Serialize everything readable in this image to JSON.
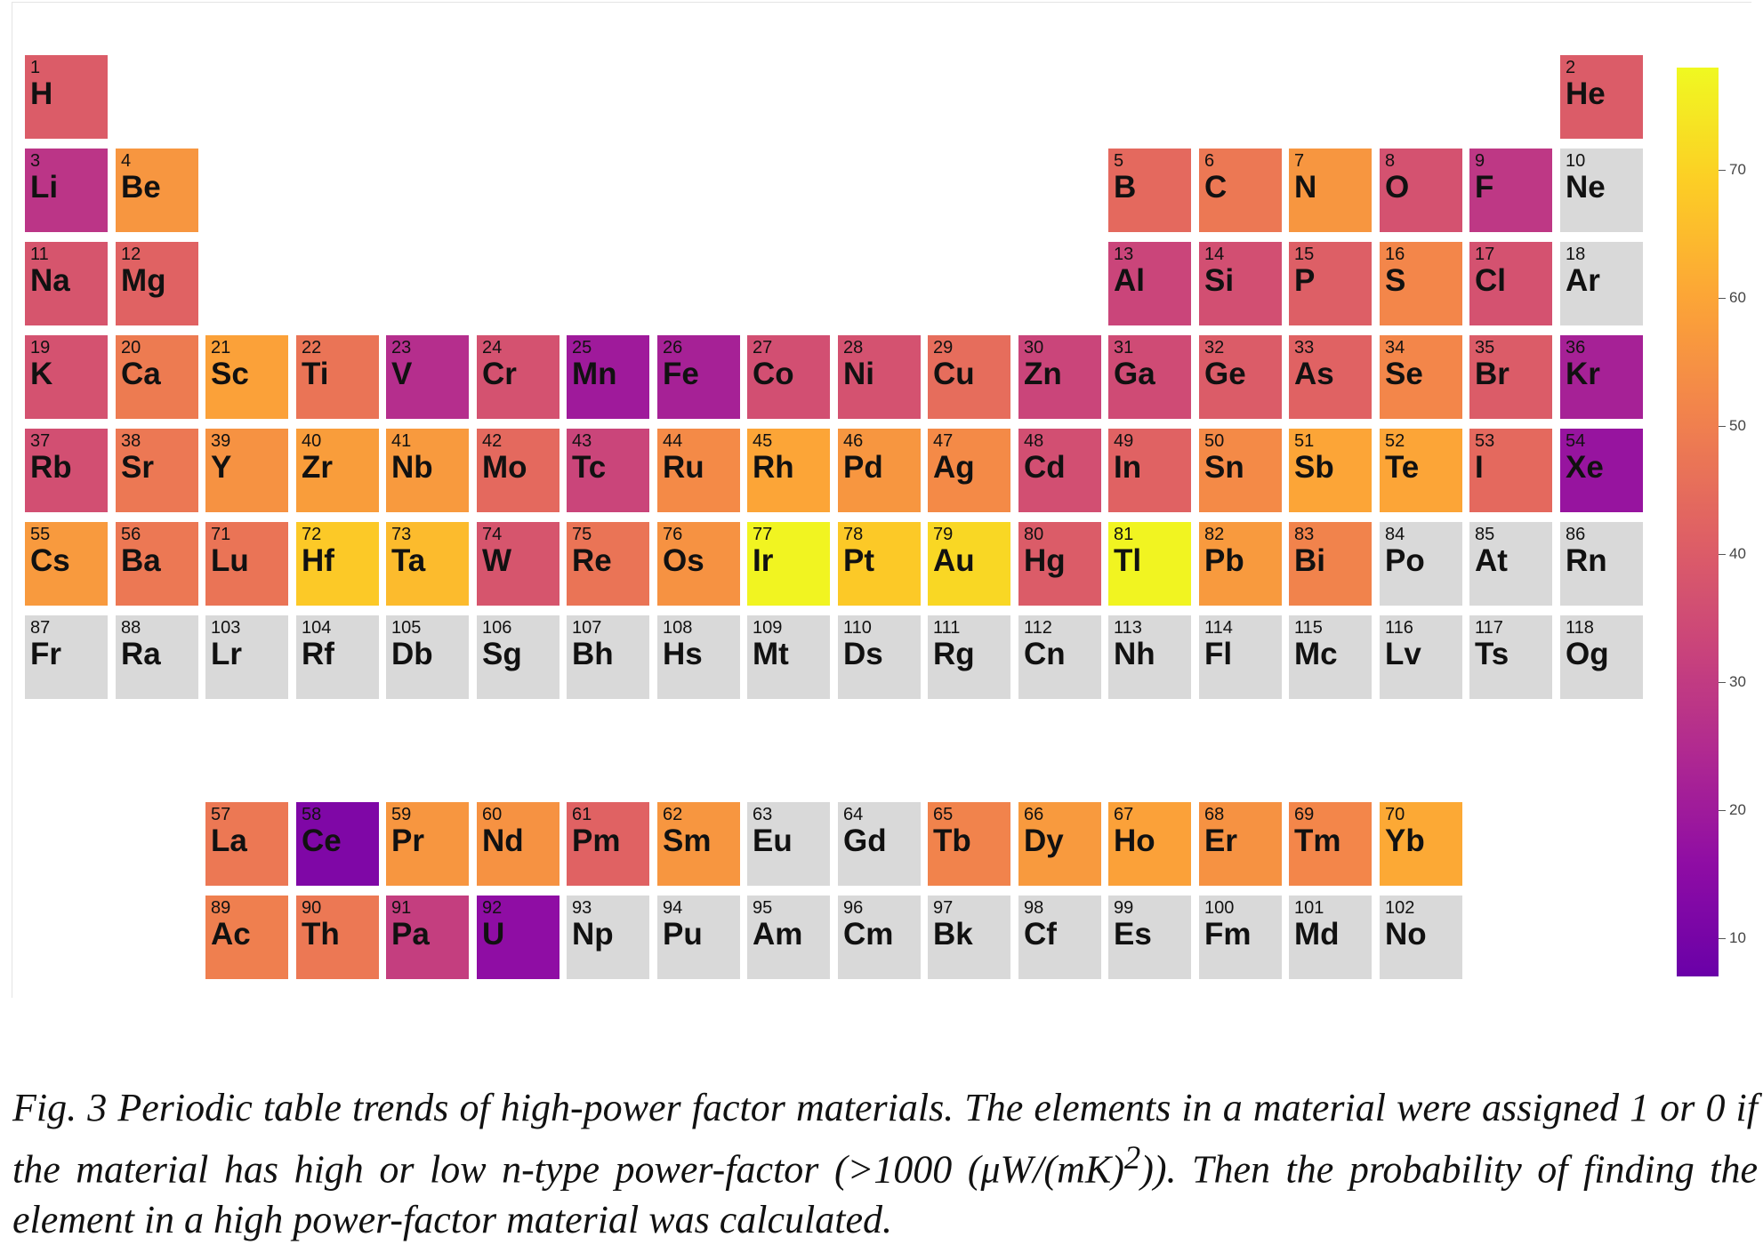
{
  "chart_data": {
    "type": "heatmap",
    "title": "",
    "colorbar": {
      "range": [
        7,
        78
      ],
      "ticks": [
        10,
        20,
        30,
        40,
        50,
        60,
        70
      ],
      "colormap": "plasma",
      "colors": [
        "#0d0887",
        "#41049d",
        "#6a00a8",
        "#8f0da4",
        "#b12a90",
        "#cc4778",
        "#e16462",
        "#f2844b",
        "#fca636",
        "#fcce25",
        "#f0f921"
      ]
    },
    "no_data_color": "#d9d9d9",
    "elements": [
      {
        "num": "1",
        "sym": "H",
        "value": 40
      },
      {
        "num": "2",
        "sym": "He",
        "value": 40
      },
      {
        "num": "3",
        "sym": "Li",
        "value": 28
      },
      {
        "num": "4",
        "sym": "Be",
        "value": 56
      },
      {
        "num": "5",
        "sym": "B",
        "value": 44
      },
      {
        "num": "6",
        "sym": "C",
        "value": 48
      },
      {
        "num": "7",
        "sym": "N",
        "value": 56
      },
      {
        "num": "8",
        "sym": "O",
        "value": 37
      },
      {
        "num": "9",
        "sym": "F",
        "value": 29
      },
      {
        "num": "10",
        "sym": "Ne",
        "value": null
      },
      {
        "num": "11",
        "sym": "Na",
        "value": 38
      },
      {
        "num": "12",
        "sym": "Mg",
        "value": 42
      },
      {
        "num": "13",
        "sym": "Al",
        "value": 33
      },
      {
        "num": "14",
        "sym": "Si",
        "value": 36
      },
      {
        "num": "15",
        "sym": "P",
        "value": 41
      },
      {
        "num": "16",
        "sym": "S",
        "value": 52
      },
      {
        "num": "17",
        "sym": "Cl",
        "value": 37
      },
      {
        "num": "18",
        "sym": "Ar",
        "value": null
      },
      {
        "num": "19",
        "sym": "K",
        "value": 37
      },
      {
        "num": "20",
        "sym": "Ca",
        "value": 49
      },
      {
        "num": "21",
        "sym": "Sc",
        "value": 59
      },
      {
        "num": "22",
        "sym": "Ti",
        "value": 47
      },
      {
        "num": "23",
        "sym": "V",
        "value": 26
      },
      {
        "num": "24",
        "sym": "Cr",
        "value": 37
      },
      {
        "num": "25",
        "sym": "Mn",
        "value": 20
      },
      {
        "num": "26",
        "sym": "Fe",
        "value": 22
      },
      {
        "num": "27",
        "sym": "Co",
        "value": 36
      },
      {
        "num": "28",
        "sym": "Ni",
        "value": 37
      },
      {
        "num": "29",
        "sym": "Cu",
        "value": 45
      },
      {
        "num": "30",
        "sym": "Zn",
        "value": 33
      },
      {
        "num": "31",
        "sym": "Ga",
        "value": 35
      },
      {
        "num": "32",
        "sym": "Ge",
        "value": 40
      },
      {
        "num": "33",
        "sym": "As",
        "value": 42
      },
      {
        "num": "34",
        "sym": "Se",
        "value": 52
      },
      {
        "num": "35",
        "sym": "Br",
        "value": 40
      },
      {
        "num": "36",
        "sym": "Kr",
        "value": 22
      },
      {
        "num": "37",
        "sym": "Rb",
        "value": 36
      },
      {
        "num": "38",
        "sym": "Sr",
        "value": 48
      },
      {
        "num": "39",
        "sym": "Y",
        "value": 55
      },
      {
        "num": "40",
        "sym": "Zr",
        "value": 58
      },
      {
        "num": "41",
        "sym": "Nb",
        "value": 57
      },
      {
        "num": "42",
        "sym": "Mo",
        "value": 44
      },
      {
        "num": "43",
        "sym": "Tc",
        "value": 33
      },
      {
        "num": "44",
        "sym": "Ru",
        "value": 53
      },
      {
        "num": "45",
        "sym": "Rh",
        "value": 60
      },
      {
        "num": "46",
        "sym": "Pd",
        "value": 56
      },
      {
        "num": "47",
        "sym": "Ag",
        "value": 53
      },
      {
        "num": "48",
        "sym": "Cd",
        "value": 36
      },
      {
        "num": "49",
        "sym": "In",
        "value": 42
      },
      {
        "num": "50",
        "sym": "Sn",
        "value": 53
      },
      {
        "num": "51",
        "sym": "Sb",
        "value": 60
      },
      {
        "num": "52",
        "sym": "Te",
        "value": 60
      },
      {
        "num": "53",
        "sym": "I",
        "value": 44
      },
      {
        "num": "54",
        "sym": "Xe",
        "value": 18
      },
      {
        "num": "55",
        "sym": "Cs",
        "value": 57
      },
      {
        "num": "56",
        "sym": "Ba",
        "value": 48
      },
      {
        "num": "71",
        "sym": "Lu",
        "value": 47
      },
      {
        "num": "72",
        "sym": "Hf",
        "value": 68
      },
      {
        "num": "73",
        "sym": "Ta",
        "value": 65
      },
      {
        "num": "74",
        "sym": "W",
        "value": 38
      },
      {
        "num": "75",
        "sym": "Re",
        "value": 47
      },
      {
        "num": "76",
        "sym": "Os",
        "value": 55
      },
      {
        "num": "77",
        "sym": "Ir",
        "value": 77
      },
      {
        "num": "78",
        "sym": "Pt",
        "value": 68
      },
      {
        "num": "79",
        "sym": "Au",
        "value": 71
      },
      {
        "num": "80",
        "sym": "Hg",
        "value": 40
      },
      {
        "num": "81",
        "sym": "Tl",
        "value": 77
      },
      {
        "num": "82",
        "sym": "Pb",
        "value": 57
      },
      {
        "num": "83",
        "sym": "Bi",
        "value": 51
      },
      {
        "num": "84",
        "sym": "Po",
        "value": null
      },
      {
        "num": "85",
        "sym": "At",
        "value": null
      },
      {
        "num": "86",
        "sym": "Rn",
        "value": null
      },
      {
        "num": "87",
        "sym": "Fr",
        "value": null
      },
      {
        "num": "88",
        "sym": "Ra",
        "value": null
      },
      {
        "num": "103",
        "sym": "Lr",
        "value": null
      },
      {
        "num": "104",
        "sym": "Rf",
        "value": null
      },
      {
        "num": "105",
        "sym": "Db",
        "value": null
      },
      {
        "num": "106",
        "sym": "Sg",
        "value": null
      },
      {
        "num": "107",
        "sym": "Bh",
        "value": null
      },
      {
        "num": "108",
        "sym": "Hs",
        "value": null
      },
      {
        "num": "109",
        "sym": "Mt",
        "value": null
      },
      {
        "num": "110",
        "sym": "Ds",
        "value": null
      },
      {
        "num": "111",
        "sym": "Rg",
        "value": null
      },
      {
        "num": "112",
        "sym": "Cn",
        "value": null
      },
      {
        "num": "113",
        "sym": "Nh",
        "value": null
      },
      {
        "num": "114",
        "sym": "Fl",
        "value": null
      },
      {
        "num": "115",
        "sym": "Mc",
        "value": null
      },
      {
        "num": "116",
        "sym": "Lv",
        "value": null
      },
      {
        "num": "117",
        "sym": "Ts",
        "value": null
      },
      {
        "num": "118",
        "sym": "Og",
        "value": null
      },
      {
        "num": "57",
        "sym": "La",
        "value": 48
      },
      {
        "num": "58",
        "sym": "Ce",
        "value": 12
      },
      {
        "num": "59",
        "sym": "Pr",
        "value": 56
      },
      {
        "num": "60",
        "sym": "Nd",
        "value": 55
      },
      {
        "num": "61",
        "sym": "Pm",
        "value": 42
      },
      {
        "num": "62",
        "sym": "Sm",
        "value": 56
      },
      {
        "num": "63",
        "sym": "Eu",
        "value": null
      },
      {
        "num": "64",
        "sym": "Gd",
        "value": null
      },
      {
        "num": "65",
        "sym": "Tb",
        "value": 51
      },
      {
        "num": "66",
        "sym": "Dy",
        "value": 57
      },
      {
        "num": "67",
        "sym": "Ho",
        "value": 59
      },
      {
        "num": "68",
        "sym": "Er",
        "value": 55
      },
      {
        "num": "69",
        "sym": "Tm",
        "value": 52
      },
      {
        "num": "70",
        "sym": "Yb",
        "value": 61
      },
      {
        "num": "89",
        "sym": "Ac",
        "value": 50
      },
      {
        "num": "90",
        "sym": "Th",
        "value": 48
      },
      {
        "num": "91",
        "sym": "Pa",
        "value": 31
      },
      {
        "num": "92",
        "sym": "U",
        "value": 16
      },
      {
        "num": "93",
        "sym": "Np",
        "value": null
      },
      {
        "num": "94",
        "sym": "Pu",
        "value": null
      },
      {
        "num": "95",
        "sym": "Am",
        "value": null
      },
      {
        "num": "96",
        "sym": "Cm",
        "value": null
      },
      {
        "num": "97",
        "sym": "Bk",
        "value": null
      },
      {
        "num": "98",
        "sym": "Cf",
        "value": null
      },
      {
        "num": "99",
        "sym": "Es",
        "value": null
      },
      {
        "num": "100",
        "sym": "Fm",
        "value": null
      },
      {
        "num": "101",
        "sym": "Md",
        "value": null
      },
      {
        "num": "102",
        "sym": "No",
        "value": null
      }
    ]
  },
  "caption": {
    "label": "Fig. 3",
    "text": "Periodic table trends of high-power factor materials. The elements in a material were assigned 1 or 0 if the material has high or low n-type power-factor (>1000 (μW/(mK)",
    "superscript": "2",
    "text_after": ")). Then the probability of finding the element in a high power-factor material was calculated."
  }
}
